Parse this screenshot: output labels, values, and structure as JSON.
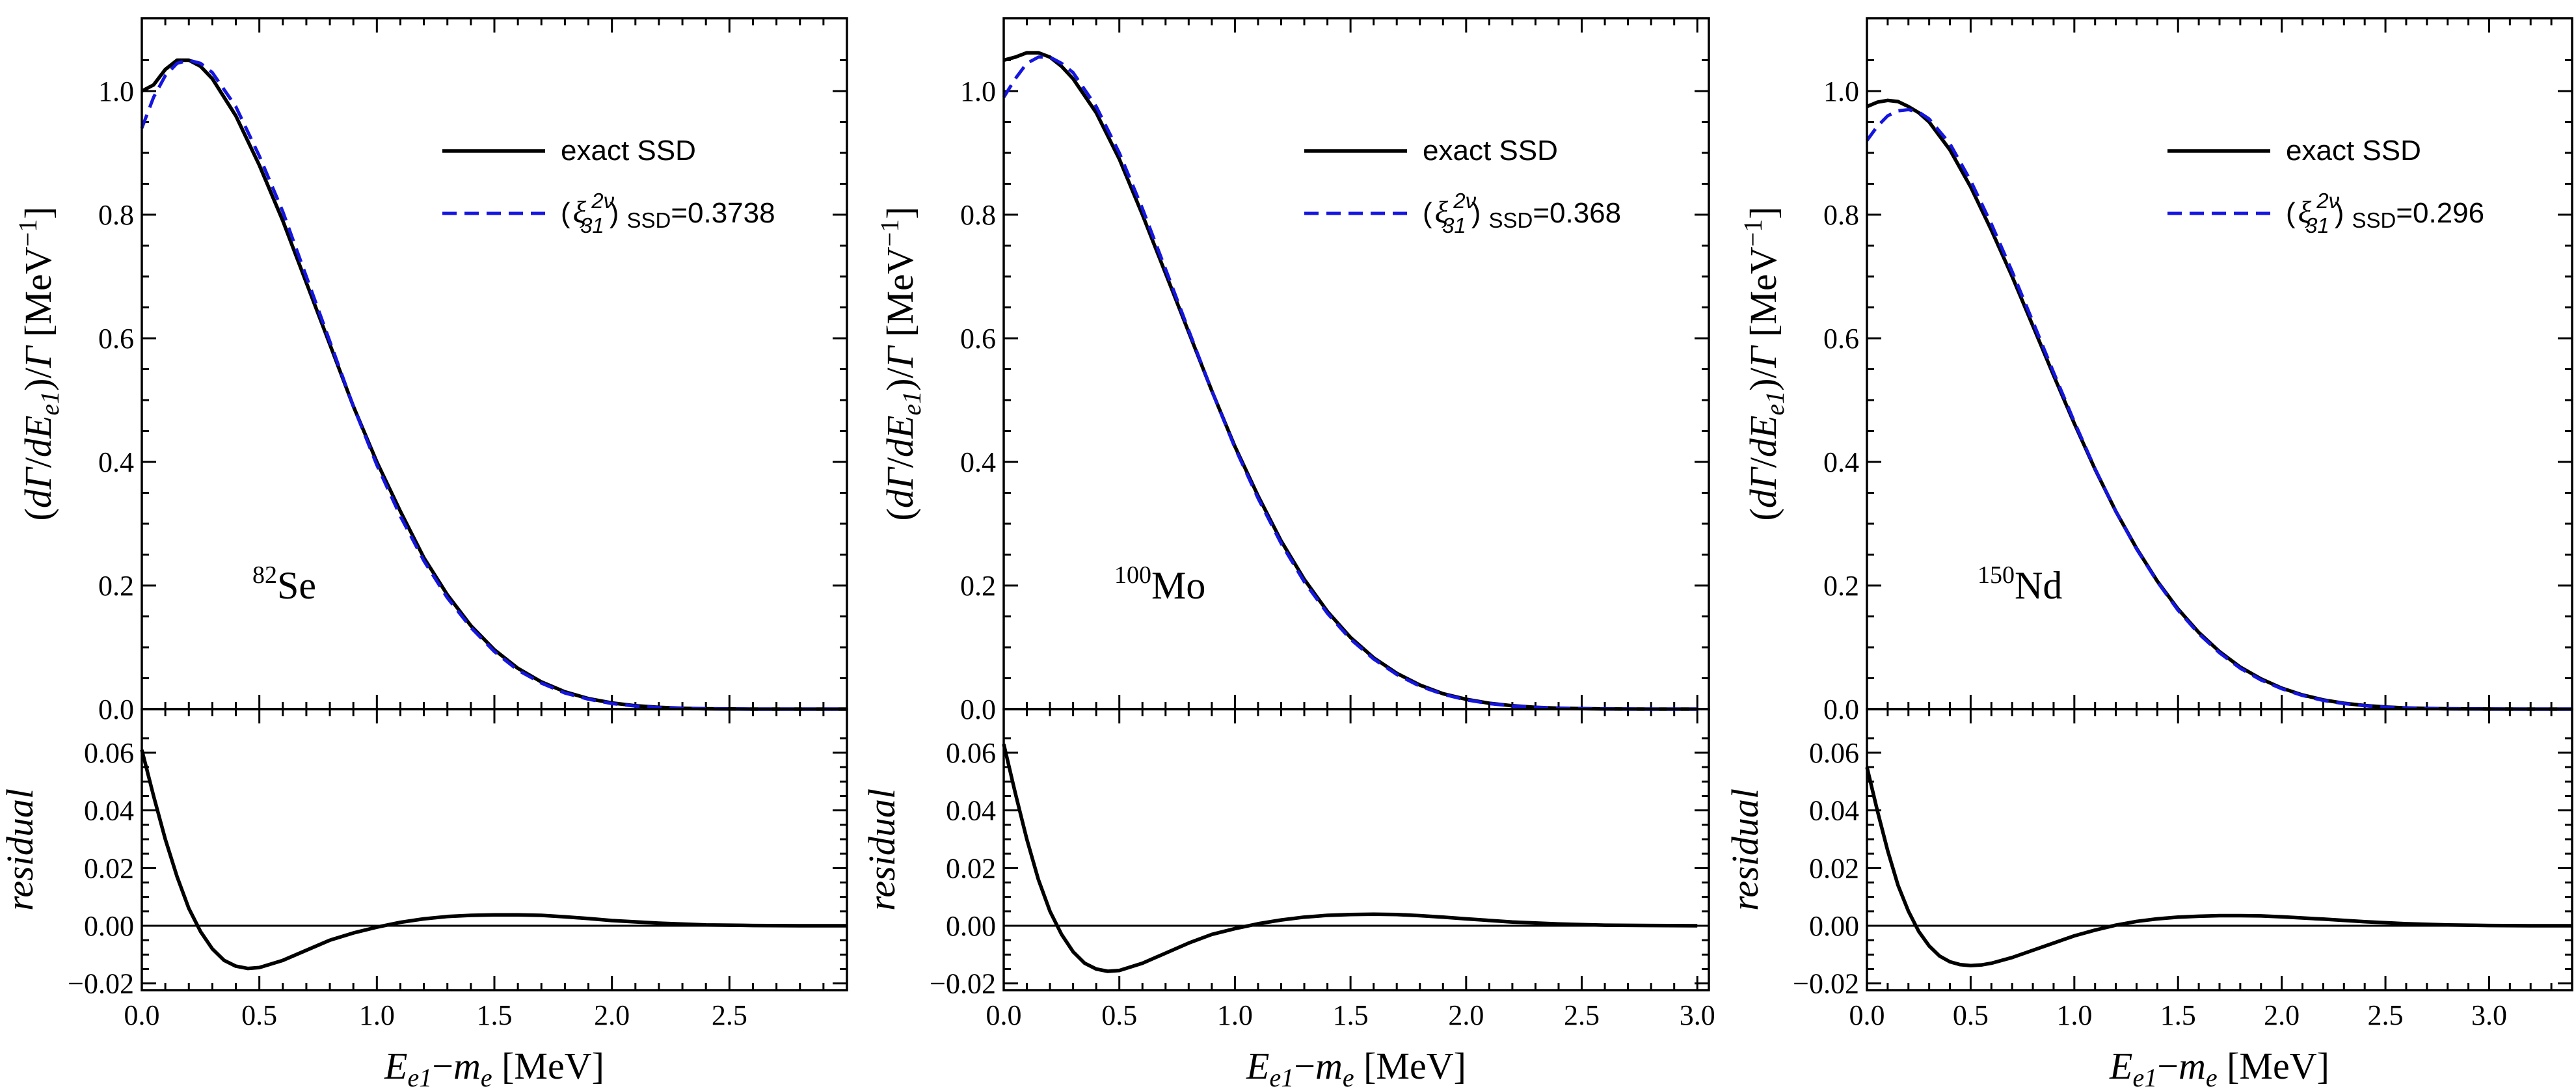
{
  "figure": {
    "ylabel_main": "(dΓ/dE_e1)/Γ [MeV⁻¹]",
    "ylabel_main_parts": {
      "open": "(",
      "d1": "d",
      "gamma1": "Γ",
      "slash1": "/",
      "d2": "d",
      "E": "E",
      "sub": "e1",
      "close": ")",
      "slash2": "/",
      "gamma2": "Γ",
      "unit_open": " [MeV",
      "unit_exp": "−1",
      "unit_close": "]"
    },
    "ylabel_resid": "residual",
    "xlabel_parts": {
      "E": "E",
      "sub": "e1",
      "dash": "−",
      "m": "m",
      "msub": "e",
      "unit": " [MeV]"
    },
    "legend": {
      "exact_label": "exact SSD",
      "approx_prefix": "(ξ",
      "approx_sup": "2ν",
      "approx_sub": "31",
      "approx_close": ")",
      "approx_ssd": "SSD",
      "exact_color": "#000000",
      "approx_color": "#1515e0"
    }
  },
  "chart_data": [
    {
      "type": "line",
      "isotope_mass": "82",
      "isotope_symbol": "Se",
      "xi_value": "=0.3738",
      "xlim": [
        0,
        3.0
      ],
      "ylim_main": [
        0,
        1.1
      ],
      "ylim_resid": [
        -0.02,
        0.07
      ],
      "xticks": [
        "0.0",
        "0.5",
        "1.0",
        "1.5",
        "2.0",
        "2.5"
      ],
      "yticks_main": [
        "0.0",
        "0.2",
        "0.4",
        "0.6",
        "0.8",
        "1.0"
      ],
      "yticks_resid": [
        "−0.02",
        "0.00",
        "0.02",
        "0.04",
        "0.06"
      ],
      "series": [
        {
          "name": "exact SSD",
          "x": [
            0.0,
            0.05,
            0.1,
            0.15,
            0.2,
            0.25,
            0.3,
            0.4,
            0.5,
            0.6,
            0.7,
            0.8,
            0.9,
            1.0,
            1.1,
            1.2,
            1.3,
            1.4,
            1.5,
            1.6,
            1.7,
            1.8,
            1.9,
            2.0,
            2.1,
            2.2,
            2.3,
            2.4,
            2.5,
            2.6,
            2.7,
            2.8,
            2.9,
            3.0
          ],
          "y": [
            1.0,
            1.01,
            1.035,
            1.05,
            1.05,
            1.04,
            1.02,
            0.96,
            0.88,
            0.79,
            0.69,
            0.59,
            0.49,
            0.4,
            0.32,
            0.245,
            0.185,
            0.135,
            0.096,
            0.066,
            0.044,
            0.028,
            0.017,
            0.01,
            0.0055,
            0.0028,
            0.0013,
            0.0005,
            0.0002,
            0.0,
            0.0,
            0.0,
            0.0,
            0.0
          ]
        },
        {
          "name": "(ξ 2ν 31) SSD=0.3738",
          "x": [
            0.0,
            0.05,
            0.1,
            0.15,
            0.2,
            0.25,
            0.3,
            0.4,
            0.5,
            0.6,
            0.7,
            0.8,
            0.9,
            1.0,
            1.1,
            1.2,
            1.3,
            1.4,
            1.5,
            1.6,
            1.7,
            1.8,
            1.9,
            2.0,
            2.1,
            2.2,
            2.3,
            2.4,
            2.5,
            2.6,
            2.7,
            2.8,
            2.9,
            3.0
          ],
          "y": [
            0.94,
            0.99,
            1.025,
            1.045,
            1.05,
            1.045,
            1.03,
            0.975,
            0.895,
            0.805,
            0.7,
            0.595,
            0.49,
            0.395,
            0.312,
            0.24,
            0.18,
            0.132,
            0.093,
            0.063,
            0.042,
            0.026,
            0.016,
            0.009,
            0.005,
            0.0025,
            0.0012,
            0.0005,
            0.0002,
            0.0,
            0.0,
            0.0,
            0.0,
            0.0
          ]
        }
      ],
      "residual": {
        "x": [
          0.0,
          0.05,
          0.1,
          0.15,
          0.2,
          0.25,
          0.3,
          0.35,
          0.4,
          0.45,
          0.5,
          0.6,
          0.7,
          0.8,
          0.9,
          1.0,
          1.1,
          1.2,
          1.3,
          1.4,
          1.5,
          1.6,
          1.7,
          1.8,
          1.9,
          2.0,
          2.2,
          2.4,
          2.6,
          2.8,
          3.0
        ],
        "y": [
          0.061,
          0.045,
          0.03,
          0.017,
          0.006,
          -0.002,
          -0.008,
          -0.012,
          -0.014,
          -0.0148,
          -0.0145,
          -0.012,
          -0.0085,
          -0.005,
          -0.0025,
          -0.0005,
          0.0012,
          0.0024,
          0.0032,
          0.0036,
          0.0038,
          0.0038,
          0.0036,
          0.0031,
          0.0025,
          0.0018,
          0.0009,
          0.0003,
          0.0001,
          0.0,
          0.0
        ]
      }
    },
    {
      "type": "line",
      "isotope_mass": "100",
      "isotope_symbol": "Mo",
      "xi_value": "=0.368",
      "xlim": [
        0,
        3.05
      ],
      "ylim_main": [
        0,
        1.1
      ],
      "ylim_resid": [
        -0.02,
        0.07
      ],
      "xticks": [
        "0.0",
        "0.5",
        "1.0",
        "1.5",
        "2.0",
        "2.5",
        "3.0"
      ],
      "yticks_main": [
        "0.0",
        "0.2",
        "0.4",
        "0.6",
        "0.8",
        "1.0"
      ],
      "yticks_resid": [
        "−0.02",
        "0.00",
        "0.02",
        "0.04",
        "0.06"
      ],
      "series": [
        {
          "name": "exact SSD",
          "x": [
            0.0,
            0.05,
            0.1,
            0.15,
            0.2,
            0.25,
            0.3,
            0.4,
            0.5,
            0.6,
            0.7,
            0.8,
            0.9,
            1.0,
            1.1,
            1.2,
            1.3,
            1.4,
            1.5,
            1.6,
            1.7,
            1.8,
            1.9,
            2.0,
            2.1,
            2.2,
            2.3,
            2.4,
            2.5,
            2.6,
            2.7,
            2.8,
            2.9,
            3.0
          ],
          "y": [
            1.05,
            1.055,
            1.062,
            1.062,
            1.055,
            1.04,
            1.02,
            0.965,
            0.89,
            0.8,
            0.705,
            0.61,
            0.515,
            0.425,
            0.345,
            0.272,
            0.21,
            0.158,
            0.116,
            0.083,
            0.058,
            0.039,
            0.025,
            0.016,
            0.0095,
            0.0055,
            0.003,
            0.0015,
            0.0007,
            0.0003,
            0.0001,
            0.0,
            0.0,
            0.0
          ]
        },
        {
          "name": "(ξ 2ν 31) SSD=0.368",
          "x": [
            0.0,
            0.05,
            0.1,
            0.15,
            0.2,
            0.25,
            0.3,
            0.4,
            0.5,
            0.6,
            0.7,
            0.8,
            0.9,
            1.0,
            1.1,
            1.2,
            1.3,
            1.4,
            1.5,
            1.6,
            1.7,
            1.8,
            1.9,
            2.0,
            2.1,
            2.2,
            2.3,
            2.4,
            2.5,
            2.6,
            2.7,
            2.8,
            2.9,
            3.0
          ],
          "y": [
            0.99,
            1.02,
            1.045,
            1.055,
            1.055,
            1.045,
            1.03,
            0.975,
            0.9,
            0.81,
            0.712,
            0.613,
            0.515,
            0.423,
            0.341,
            0.268,
            0.206,
            0.155,
            0.113,
            0.081,
            0.056,
            0.037,
            0.024,
            0.015,
            0.009,
            0.005,
            0.0028,
            0.0014,
            0.0006,
            0.0002,
            0.0001,
            0.0,
            0.0,
            0.0
          ]
        }
      ],
      "residual": {
        "x": [
          0.0,
          0.05,
          0.1,
          0.15,
          0.2,
          0.25,
          0.3,
          0.35,
          0.4,
          0.45,
          0.5,
          0.6,
          0.7,
          0.8,
          0.9,
          1.0,
          1.1,
          1.2,
          1.3,
          1.4,
          1.5,
          1.6,
          1.7,
          1.8,
          1.9,
          2.0,
          2.2,
          2.4,
          2.6,
          2.8,
          3.0
        ],
        "y": [
          0.063,
          0.046,
          0.03,
          0.016,
          0.005,
          -0.003,
          -0.009,
          -0.013,
          -0.015,
          -0.0158,
          -0.0155,
          -0.013,
          -0.0095,
          -0.006,
          -0.003,
          -0.001,
          0.0007,
          0.002,
          0.003,
          0.0036,
          0.0039,
          0.004,
          0.0039,
          0.0035,
          0.003,
          0.0024,
          0.0013,
          0.0006,
          0.0002,
          0.0001,
          0.0
        ]
      }
    },
    {
      "type": "line",
      "isotope_mass": "150",
      "isotope_symbol": "Nd",
      "xi_value": "=0.296",
      "xlim": [
        0,
        3.4
      ],
      "ylim_main": [
        0,
        1.1
      ],
      "ylim_resid": [
        -0.02,
        0.07
      ],
      "xticks": [
        "0.0",
        "0.5",
        "1.0",
        "1.5",
        "2.0",
        "2.5",
        "3.0"
      ],
      "yticks_main": [
        "0.0",
        "0.2",
        "0.4",
        "0.6",
        "0.8",
        "1.0"
      ],
      "yticks_resid": [
        "−0.02",
        "0.00",
        "0.02",
        "0.04",
        "0.06"
      ],
      "series": [
        {
          "name": "exact SSD",
          "x": [
            0.0,
            0.05,
            0.1,
            0.15,
            0.2,
            0.25,
            0.3,
            0.4,
            0.5,
            0.6,
            0.7,
            0.8,
            0.9,
            1.0,
            1.1,
            1.2,
            1.3,
            1.4,
            1.5,
            1.6,
            1.7,
            1.8,
            1.9,
            2.0,
            2.1,
            2.2,
            2.3,
            2.4,
            2.5,
            2.6,
            2.7,
            2.8,
            3.0,
            3.2,
            3.4
          ],
          "y": [
            0.975,
            0.982,
            0.985,
            0.983,
            0.975,
            0.965,
            0.95,
            0.905,
            0.845,
            0.775,
            0.7,
            0.62,
            0.54,
            0.462,
            0.388,
            0.32,
            0.26,
            0.207,
            0.162,
            0.124,
            0.093,
            0.068,
            0.049,
            0.034,
            0.023,
            0.015,
            0.0095,
            0.0058,
            0.0034,
            0.0019,
            0.001,
            0.0005,
            0.0001,
            0.0,
            0.0
          ]
        },
        {
          "name": "(ξ 2ν 31) SSD=0.296",
          "x": [
            0.0,
            0.05,
            0.1,
            0.15,
            0.2,
            0.25,
            0.3,
            0.4,
            0.5,
            0.6,
            0.7,
            0.8,
            0.9,
            1.0,
            1.1,
            1.2,
            1.3,
            1.4,
            1.5,
            1.6,
            1.7,
            1.8,
            1.9,
            2.0,
            2.1,
            2.2,
            2.3,
            2.4,
            2.5,
            2.6,
            2.7,
            2.8,
            3.0,
            3.2,
            3.4
          ],
          "y": [
            0.92,
            0.943,
            0.96,
            0.968,
            0.97,
            0.966,
            0.955,
            0.915,
            0.855,
            0.785,
            0.708,
            0.627,
            0.545,
            0.465,
            0.389,
            0.32,
            0.259,
            0.206,
            0.16,
            0.122,
            0.091,
            0.066,
            0.047,
            0.033,
            0.022,
            0.014,
            0.009,
            0.0055,
            0.0032,
            0.0018,
            0.0009,
            0.0004,
            0.0001,
            0.0,
            0.0
          ]
        }
      ],
      "residual": {
        "x": [
          0.0,
          0.05,
          0.1,
          0.15,
          0.2,
          0.25,
          0.3,
          0.35,
          0.4,
          0.45,
          0.5,
          0.55,
          0.6,
          0.7,
          0.8,
          0.9,
          1.0,
          1.1,
          1.2,
          1.3,
          1.4,
          1.5,
          1.6,
          1.7,
          1.8,
          1.9,
          2.0,
          2.2,
          2.4,
          2.6,
          2.8,
          3.0,
          3.2,
          3.4
        ],
        "y": [
          0.055,
          0.04,
          0.026,
          0.014,
          0.005,
          -0.002,
          -0.007,
          -0.0105,
          -0.0125,
          -0.0135,
          -0.0138,
          -0.0136,
          -0.013,
          -0.011,
          -0.0085,
          -0.006,
          -0.0035,
          -0.0015,
          0.0002,
          0.0015,
          0.0024,
          0.003,
          0.0033,
          0.0035,
          0.0035,
          0.0034,
          0.0031,
          0.0023,
          0.0014,
          0.0007,
          0.0003,
          0.0001,
          0.0,
          0.0
        ]
      }
    }
  ]
}
